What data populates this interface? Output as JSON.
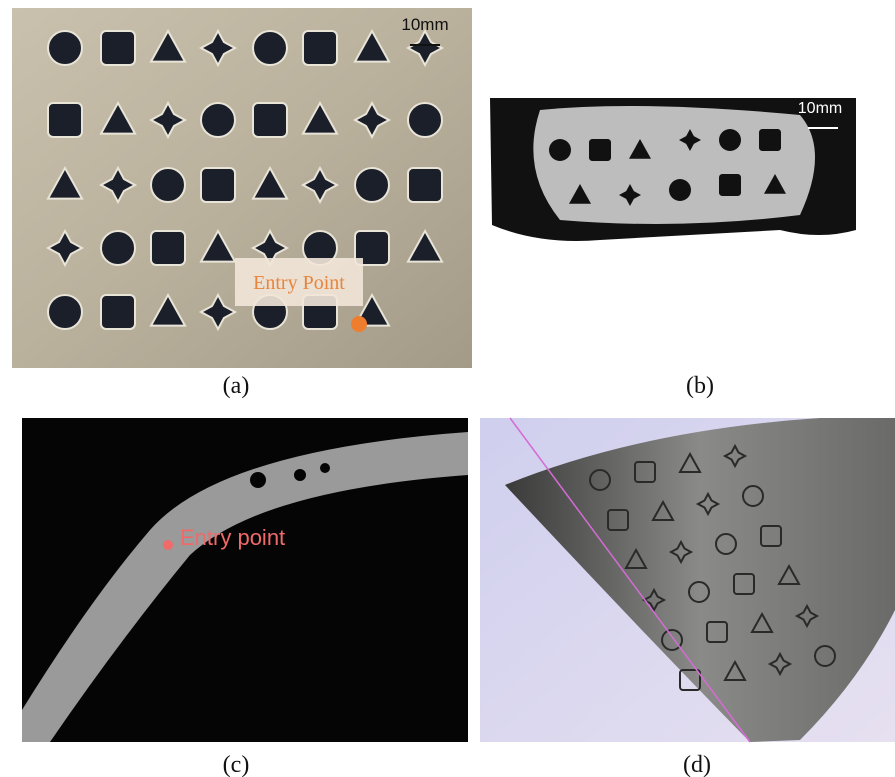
{
  "panels": [
    {
      "label": "(a)",
      "scale_bar": "10mm",
      "annotation": "Entry Point"
    },
    {
      "label": "(b)",
      "scale_bar": "10mm"
    },
    {
      "label": "(c)",
      "annotation": "Entry point"
    },
    {
      "label": "(d)"
    }
  ]
}
